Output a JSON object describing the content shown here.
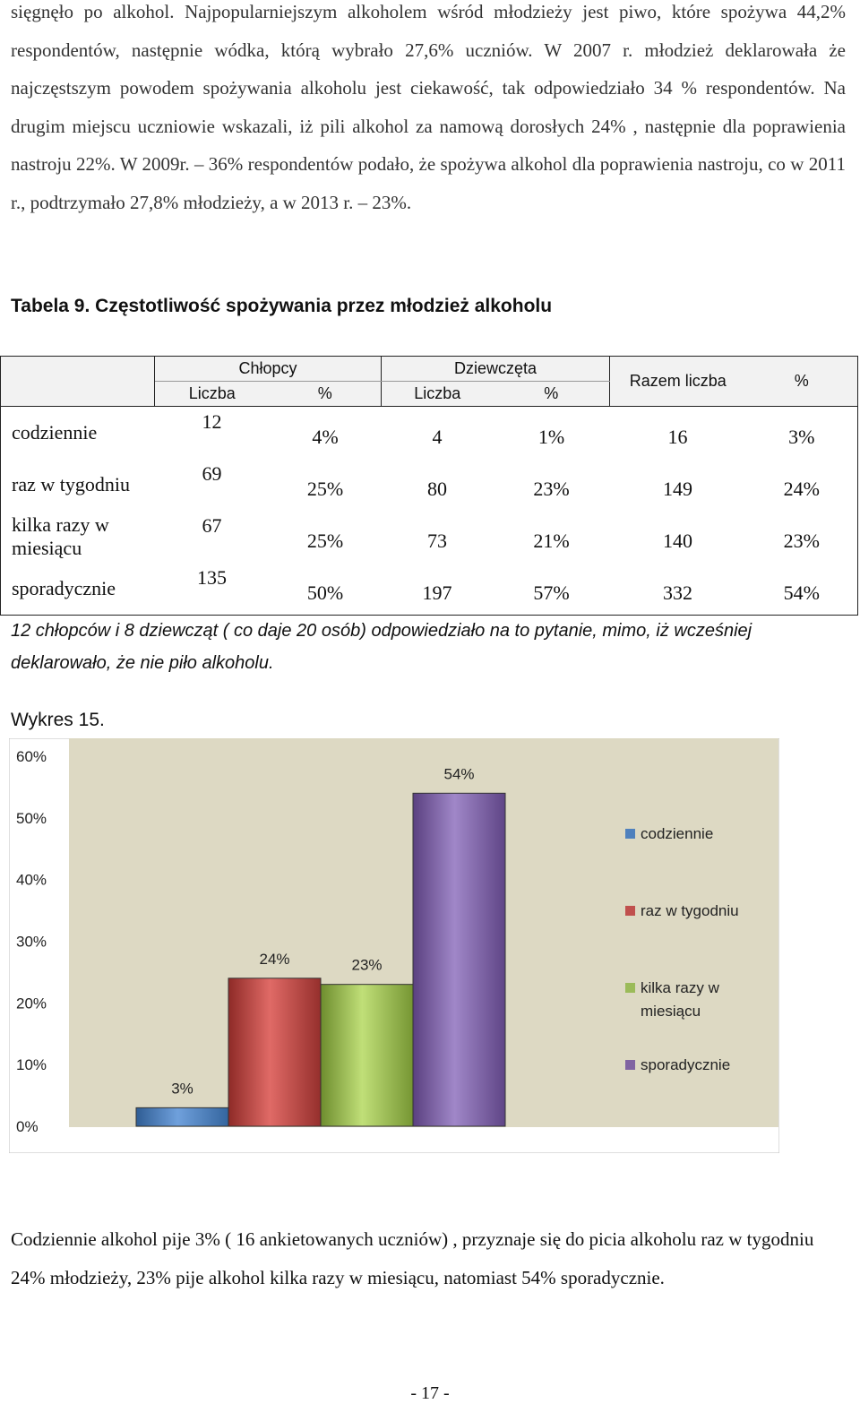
{
  "intro_text": "sięgnęło po alkohol. Najpopularniejszym alkoholem wśród młodzieży jest piwo, które spożywa 44,2% respondentów, następnie wódka, którą wybrało 27,6% uczniów. W 2007 r. młodzież deklarowała że najczęstszym powodem spożywania alkoholu jest ciekawość, tak odpowiedziało 34 % respondentów. Na drugim miejscu uczniowie wskazali, iż pili alkohol za namową dorosłych 24% , następnie dla poprawienia nastroju 22%. W 2009r. – 36% respondentów podało, że spożywa alkohol dla poprawienia nastroju, co w 2011 r., podtrzymało 27,8% młodzieży, a w 2013 r. – 23%.",
  "table": {
    "title": "Tabela 9. Częstotliwość spożywania przez młodzież alkoholu",
    "headers": {
      "boys": "Chłopcy",
      "girls": "Dziewczęta",
      "count": "Liczba",
      "percent": "%",
      "total_count": "Razem liczba"
    },
    "rows": [
      {
        "label": "codziennie",
        "boys_count": "12",
        "boys_pct": "4%",
        "girls_count": "4",
        "girls_pct": "1%",
        "total_count": "16",
        "total_pct": "3%"
      },
      {
        "label": "raz w tygodniu",
        "boys_count": "69",
        "boys_pct": "25%",
        "girls_count": "80",
        "girls_pct": "23%",
        "total_count": "149",
        "total_pct": "24%"
      },
      {
        "label": "kilka razy w miesiącu",
        "boys_count": "67",
        "boys_pct": "25%",
        "girls_count": "73",
        "girls_pct": "21%",
        "total_count": "140",
        "total_pct": "23%"
      },
      {
        "label": "sporadycznie",
        "boys_count": "135",
        "boys_pct": "50%",
        "girls_count": "197",
        "girls_pct": "57%",
        "total_count": "332",
        "total_pct": "54%"
      }
    ]
  },
  "note": "12 chłopców i 8 dziewcząt ( co daje 20 osób) odpowiedziało na to pytanie, mimo, iż wcześniej deklarowało, że nie piło alkoholu.",
  "chart_label": "Wykres 15.",
  "chart_data": {
    "type": "bar",
    "categories": [
      "codziennie",
      "raz w tygodniu",
      "kilka razy w miesiącu",
      "sporadycznie"
    ],
    "values": [
      3,
      24,
      23,
      54
    ],
    "data_labels": [
      "3%",
      "24%",
      "23%",
      "54%"
    ],
    "y_ticks": [
      "0%",
      "10%",
      "20%",
      "30%",
      "40%",
      "50%",
      "60%"
    ],
    "ylim": [
      0,
      60
    ],
    "legend": [
      {
        "label": "codziennie",
        "color": "#4f81bd"
      },
      {
        "label": "raz w tygodniu",
        "color": "#c0504d"
      },
      {
        "label": "kilka razy w",
        "label2": "miesiącu",
        "color": "#9bbb59"
      },
      {
        "label": "sporadycznie",
        "color": "#8064a2"
      }
    ],
    "colors": [
      "#4f81bd",
      "#c0504d",
      "#9bbb59",
      "#8064a2"
    ],
    "plot_background": "#ddd9c3",
    "legend_position": "right"
  },
  "summary": "Codziennie alkohol pije 3% ( 16 ankietowanych uczniów) , przyznaje się do picia alkoholu raz w tygodniu 24% młodzieży, 23% pije alkohol kilka razy w miesiącu, natomiast 54% sporadycznie.",
  "page_number": "- 17 -"
}
